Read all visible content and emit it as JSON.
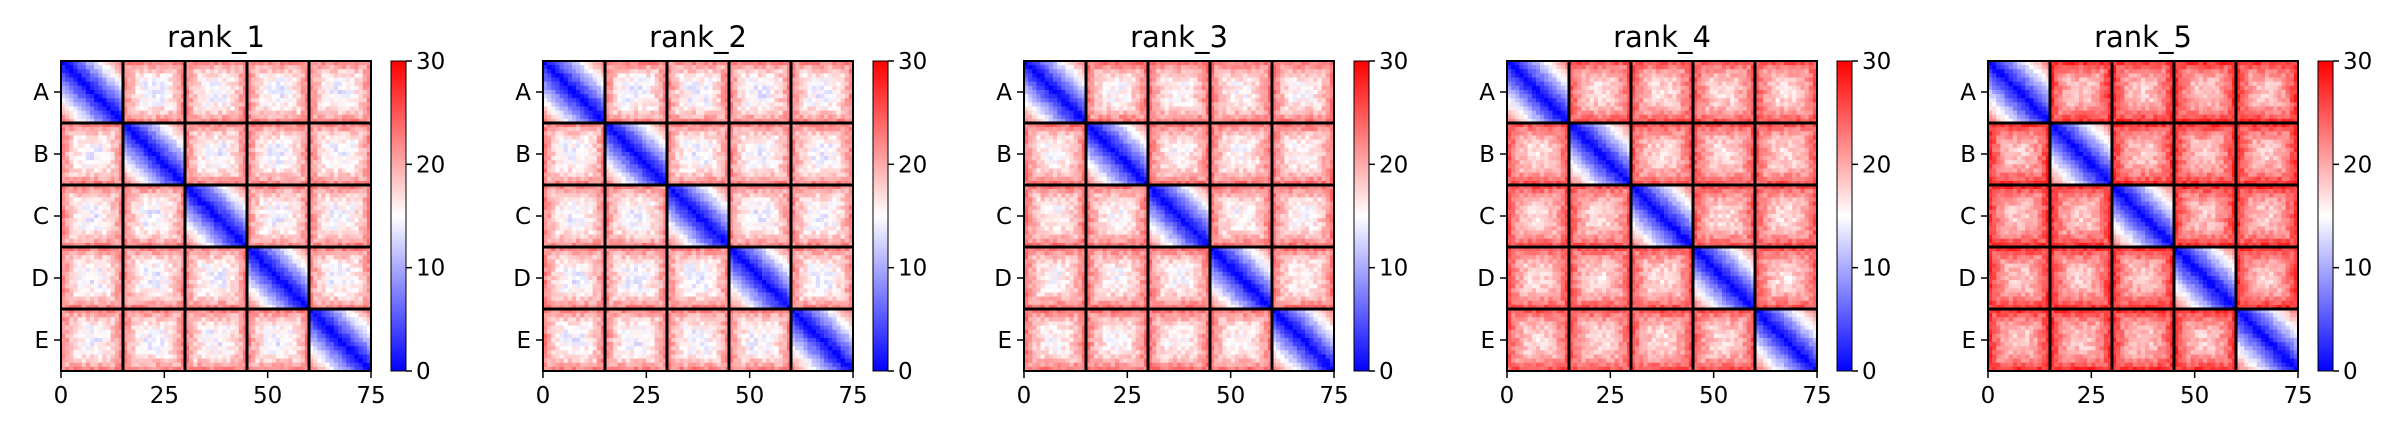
{
  "chart_data": [
    {
      "type": "heatmap",
      "title": "rank_1",
      "xlabel": "",
      "ylabel": "",
      "xlim": [
        0,
        75
      ],
      "xticks": [
        "0",
        "25",
        "50",
        "75"
      ],
      "ylabels": [
        "A",
        "B",
        "C",
        "D",
        "E"
      ],
      "blocks": 5,
      "block_size": 15,
      "colorbar": {
        "min": 0,
        "max": 30,
        "ticks": [
          "0",
          "10",
          "20",
          "30"
        ],
        "colormap": "bwr"
      },
      "diagonal_minimum": 0,
      "offdiag_level": 14,
      "corner_level": 22
    },
    {
      "type": "heatmap",
      "title": "rank_2",
      "xlabel": "",
      "ylabel": "",
      "xlim": [
        0,
        75
      ],
      "xticks": [
        "0",
        "25",
        "50",
        "75"
      ],
      "ylabels": [
        "A",
        "B",
        "C",
        "D",
        "E"
      ],
      "blocks": 5,
      "block_size": 15,
      "colorbar": {
        "min": 0,
        "max": 30,
        "ticks": [
          "0",
          "10",
          "20",
          "30"
        ],
        "colormap": "bwr"
      },
      "diagonal_minimum": 0,
      "offdiag_level": 14,
      "corner_level": 22
    },
    {
      "type": "heatmap",
      "title": "rank_3",
      "xlabel": "",
      "ylabel": "",
      "xlim": [
        0,
        75
      ],
      "xticks": [
        "0",
        "25",
        "50",
        "75"
      ],
      "ylabels": [
        "A",
        "B",
        "C",
        "D",
        "E"
      ],
      "blocks": 5,
      "block_size": 15,
      "colorbar": {
        "min": 0,
        "max": 30,
        "ticks": [
          "0",
          "10",
          "20",
          "30"
        ],
        "colormap": "bwr"
      },
      "diagonal_minimum": 0,
      "offdiag_level": 15,
      "corner_level": 23
    },
    {
      "type": "heatmap",
      "title": "rank_4",
      "xlabel": "",
      "ylabel": "",
      "xlim": [
        0,
        75
      ],
      "xticks": [
        "0",
        "25",
        "50",
        "75"
      ],
      "ylabels": [
        "A",
        "B",
        "C",
        "D",
        "E"
      ],
      "blocks": 5,
      "block_size": 15,
      "colorbar": {
        "min": 0,
        "max": 30,
        "ticks": [
          "0",
          "10",
          "20",
          "30"
        ],
        "colormap": "bwr"
      },
      "diagonal_minimum": 0,
      "offdiag_level": 17,
      "corner_level": 25
    },
    {
      "type": "heatmap",
      "title": "rank_5",
      "xlabel": "",
      "ylabel": "",
      "xlim": [
        0,
        75
      ],
      "xticks": [
        "0",
        "25",
        "50",
        "75"
      ],
      "ylabels": [
        "A",
        "B",
        "C",
        "D",
        "E"
      ],
      "blocks": 5,
      "block_size": 15,
      "colorbar": {
        "min": 0,
        "max": 30,
        "ticks": [
          "0",
          "10",
          "20",
          "30"
        ],
        "colormap": "bwr"
      },
      "diagonal_minimum": 0,
      "offdiag_level": 18,
      "corner_level": 27
    }
  ]
}
